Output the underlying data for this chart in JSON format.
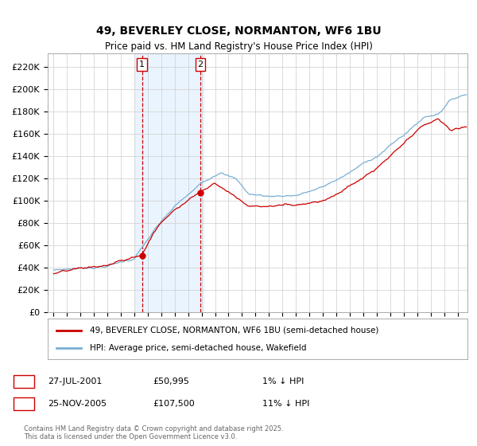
{
  "title": "49, BEVERLEY CLOSE, NORMANTON, WF6 1BU",
  "subtitle": "Price paid vs. HM Land Registry's House Price Index (HPI)",
  "ylim": [
    0,
    230000
  ],
  "yticks": [
    0,
    20000,
    40000,
    60000,
    80000,
    100000,
    120000,
    140000,
    160000,
    180000,
    200000,
    220000
  ],
  "ytick_labels": [
    "£0",
    "£20K",
    "£40K",
    "£60K",
    "£80K",
    "£100K",
    "£120K",
    "£140K",
    "£160K",
    "£180K",
    "£200K",
    "£220K"
  ],
  "purchase1_year": 2001.58,
  "purchase1_price": 50995,
  "purchase2_year": 2005.9,
  "purchase2_price": 107500,
  "purchase_color": "#cc0000",
  "hpi_color": "#7aafd4",
  "highlight_color": "#ddeeff",
  "legend_label_red": "49, BEVERLEY CLOSE, NORMANTON, WF6 1BU (semi-detached house)",
  "legend_label_blue": "HPI: Average price, semi-detached house, Wakefield",
  "table_row1_num": "1",
  "table_row1_date": "27-JUL-2001",
  "table_row1_price": "£50,995",
  "table_row1_hpi": "1% ↓ HPI",
  "table_row2_num": "2",
  "table_row2_date": "25-NOV-2005",
  "table_row2_price": "£107,500",
  "table_row2_hpi": "11% ↓ HPI",
  "footnote": "Contains HM Land Registry data © Crown copyright and database right 2025.\nThis data is licensed under the Open Government Licence v3.0.",
  "background_color": "#ffffff",
  "grid_color": "#cccccc",
  "hpi_anchors_x": [
    1995.0,
    1997.0,
    1999.0,
    2001.0,
    2002.5,
    2004.0,
    2006.0,
    2007.5,
    2008.5,
    2009.5,
    2011.0,
    2013.0,
    2015.0,
    2017.0,
    2019.0,
    2021.0,
    2022.5,
    2023.5,
    2024.5,
    2025.5
  ],
  "hpi_anchors_y": [
    38000,
    40000,
    43000,
    50000,
    75000,
    95000,
    115000,
    128000,
    122000,
    108000,
    106000,
    108000,
    115000,
    128000,
    143000,
    162000,
    178000,
    182000,
    195000,
    200000
  ],
  "red_anchors_x": [
    1995.0,
    1997.0,
    1999.0,
    2001.58,
    2002.5,
    2004.0,
    2005.9,
    2007.0,
    2008.0,
    2009.5,
    2011.0,
    2013.0,
    2015.0,
    2017.0,
    2019.0,
    2021.0,
    2022.5,
    2023.5,
    2024.5,
    2025.5
  ],
  "red_anchors_y": [
    37000,
    39500,
    42000,
    50995,
    72000,
    92000,
    107500,
    118000,
    110000,
    98000,
    98000,
    100000,
    106000,
    120000,
    135000,
    155000,
    170000,
    175000,
    165000,
    168000
  ]
}
